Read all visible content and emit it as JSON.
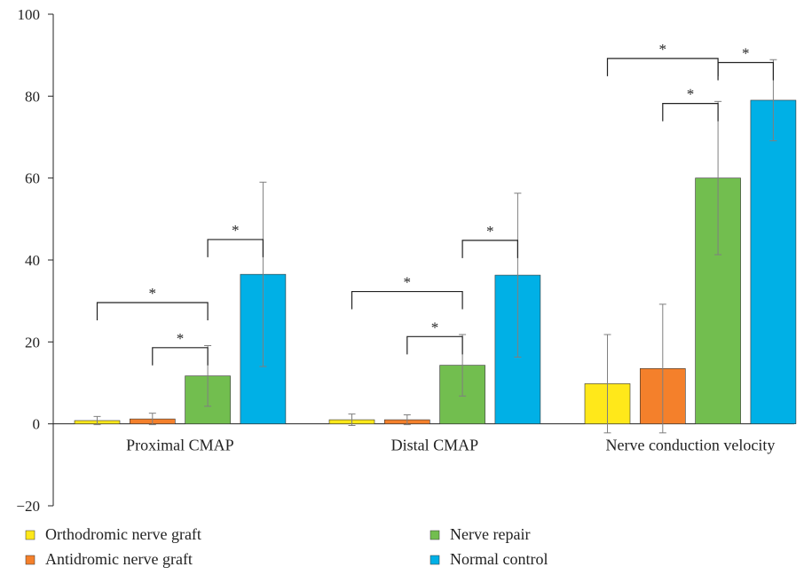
{
  "chart_data": {
    "type": "bar",
    "title": "",
    "xlabel": "",
    "ylabel": "",
    "ylim": [
      -20,
      100
    ],
    "yticks": [
      -20,
      0,
      20,
      40,
      60,
      80,
      100
    ],
    "ytick_labels": [
      "−20",
      "0",
      "20",
      "40",
      "60",
      "80",
      "100"
    ],
    "grid": false,
    "legend_placement": "bottom",
    "categories": [
      "Proximal CMAP",
      "Distal CMAP",
      "Nerve conduction velocity"
    ],
    "series": [
      {
        "name": "Orthodromic nerve graft",
        "color": "#FFE81A",
        "values": [
          0.8,
          1.0,
          9.8
        ],
        "errors": [
          1.0,
          1.4,
          12.0
        ]
      },
      {
        "name": "Antidromic nerve graft",
        "color": "#F4802B",
        "values": [
          1.2,
          1.0,
          13.5
        ],
        "errors": [
          1.4,
          1.2,
          15.7
        ]
      },
      {
        "name": "Nerve repair",
        "color": "#72BE4F",
        "values": [
          11.7,
          14.3,
          60.0
        ],
        "errors": [
          7.4,
          7.5,
          18.7
        ]
      },
      {
        "name": "Normal control",
        "color": "#00B0E6",
        "values": [
          36.5,
          36.3,
          79.0
        ],
        "errors": [
          22.5,
          20.0,
          9.9
        ]
      }
    ],
    "significance_marks": [
      {
        "category": 0,
        "from_series": 0,
        "to_series": 2,
        "label": "*"
      },
      {
        "category": 0,
        "from_series": 1,
        "to_series": 2,
        "label": "*"
      },
      {
        "category": 0,
        "from_series": 2,
        "to_series": 3,
        "label": "*"
      },
      {
        "category": 1,
        "from_series": 0,
        "to_series": 2,
        "label": "*"
      },
      {
        "category": 1,
        "from_series": 1,
        "to_series": 2,
        "label": "*"
      },
      {
        "category": 1,
        "from_series": 2,
        "to_series": 3,
        "label": "*"
      },
      {
        "category": 2,
        "from_series": 0,
        "to_series": 2,
        "label": "*"
      },
      {
        "category": 2,
        "from_series": 1,
        "to_series": 2,
        "label": "*"
      },
      {
        "category": 2,
        "from_series": 2,
        "to_series": 3,
        "label": "*"
      }
    ]
  }
}
